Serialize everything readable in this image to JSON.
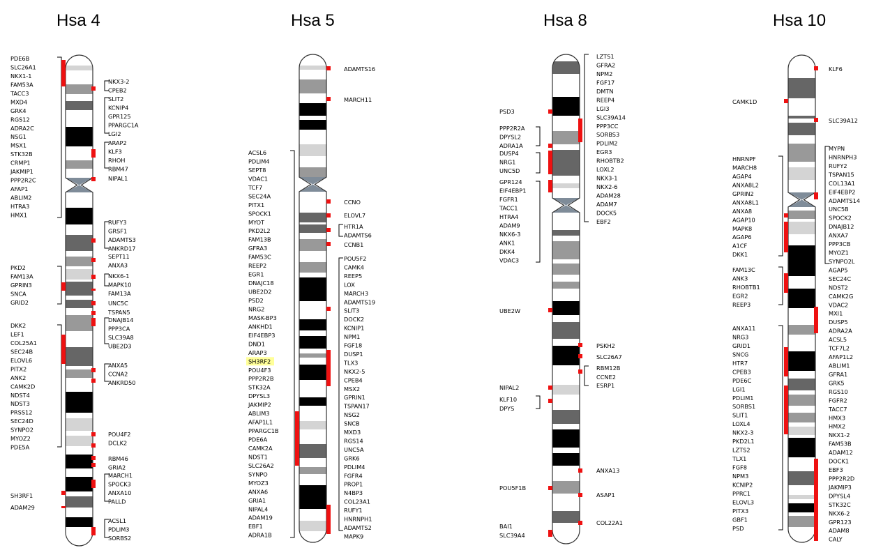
{
  "chromosomes": [
    {
      "id": "hsa4",
      "title": "Hsa 4",
      "left_genes": [
        "PDE6B",
        "SLC26A1",
        "NKX1-1",
        "FAM53A",
        "TACC3",
        "MXD4",
        "GRK4",
        "RGS12",
        "ADRA2C",
        "NSG1",
        "MSX1",
        "STK32B",
        "CRMP1",
        "JAKMIP1",
        "PPP2R2C",
        "AFAP1",
        "ABLIM2",
        "HTRA3",
        "HMX1",
        "PKD2",
        "FAM13A",
        "GPRIN3",
        "SNCA",
        "GRID2",
        "DKK2",
        "LEF1",
        "COL25A1",
        "SEC24B",
        "ELOVL6",
        "PITX2",
        "ANK2",
        "CAMK2D",
        "NDST4",
        "NDST3",
        "PRSS12",
        "SEC24D",
        "SYNPO2",
        "MYOZ2",
        "PDE5A",
        "SH3RF1",
        "ADAM29"
      ],
      "right_genes": [
        "NKX3-2",
        "CPEB2",
        "SLIT2",
        "KCNIP4",
        "GPR125",
        "PPARGC1A",
        "LGI2",
        "ARAP2",
        "KLF3",
        "RHOH",
        "RBM47",
        "NIPAL1",
        "RUFY3",
        "GRSF1",
        "ADAMTS3",
        "ANKRD17",
        "SEPT11",
        "ANXA3",
        "NKX6-1",
        "MAPK10",
        "FAM13A",
        "UNC5C",
        "TSPAN5",
        "DNAJB14",
        "PPP3CA",
        "SLC39A8",
        "UBE2D3",
        "ANXA5",
        "CCNA2",
        "ANKRD50",
        "POU4F2",
        "DCLK2",
        "RBM46",
        "GRIA2",
        "MARCH1",
        "SPOCK3",
        "ANXA10",
        "PALLD",
        "ACSL1",
        "PDLIM3",
        "SORBS2"
      ]
    },
    {
      "id": "hsa5",
      "title": "Hsa 5",
      "left_genes": [
        "ACSL6",
        "PDLIM4",
        "SEPT8",
        "VDAC1",
        "TCF7",
        "SEC24A",
        "PITX1",
        "SPOCK1",
        "MYOT",
        "PKD2L2",
        "FAM13B",
        "GFRA3",
        "FAM53C",
        "REEP2",
        "EGR1",
        "DNAJC18",
        "UBE2D2",
        "PSD2",
        "NRG2",
        "MASK-BP3",
        "ANKHD1",
        "EIF4EBP3",
        "DND1",
        "ARAP3",
        "SH3RF2",
        "POU4F3",
        "PPP2R2B",
        "STK32A",
        "DPYSL3",
        "JAKMIP2",
        "ABLIM3",
        "AFAP1L1",
        "PPARGC1B",
        "PDE6A",
        "CAMK2A",
        "NDST1",
        "SLC26A2",
        "SYNPO",
        "MYOZ3",
        "ANXA6",
        "GRIA1",
        "NIPAL4",
        "ADAM19",
        "EBF1",
        "ADRA1B"
      ],
      "right_genes": [
        "ADAMTS16",
        "MARCH11",
        "CCNO",
        "ELOVL7",
        "HTR1A",
        "ADAMTS6",
        "CCNB1",
        "POU5F2",
        "CAMK4",
        "REEP5",
        "LOX",
        "MARCH3",
        "ADAMTS19",
        "SLIT3",
        "DOCK2",
        "KCNIP1",
        "NPM1",
        "FGF18",
        "DUSP1",
        "TLX3",
        "NKX2-5",
        "CPEB4",
        "MSX2",
        "GPRIN1",
        "TSPAN17",
        "NSG2",
        "SNCB",
        "MXD3",
        "RGS14",
        "UNC5A",
        "GRK6",
        "PDLIM4",
        "FGFR4",
        "PROP1",
        "N4BP3",
        "COL23A1",
        "RUFY1",
        "HNRNPH1",
        "ADAMTS2",
        "MAPK9"
      ],
      "highlighted_gene": "SH3RF2"
    },
    {
      "id": "hsa8",
      "title": "Hsa 8",
      "left_genes": [
        "PSD3",
        "PPP2R2A",
        "DPYSL2",
        "ADRA1A",
        "DUSP4",
        "NRG1",
        "UNC5D",
        "GPR124",
        "EIF4EBP1",
        "FGFR1",
        "TACC1",
        "HTRA4",
        "ADAM9",
        "NKX6-3",
        "ANK1",
        "DKK4",
        "VDAC3",
        "UBE2W",
        "NIPAL2",
        "KLF10",
        "DPYS",
        "POU5F1B",
        "BAI1",
        "SLC39A4"
      ],
      "right_genes": [
        "LZTS1",
        "GFRA2",
        "NPM2",
        "FGF17",
        "DMTN",
        "REEP4",
        "LGI3",
        "SLC39A14",
        "PPP3CC",
        "SORBS3",
        "PDLIM2",
        "EGR3",
        "RHOBTB2",
        "LOXL2",
        "NKX3-1",
        "NKX2-6",
        "ADAM28",
        "ADAM7",
        "DOCK5",
        "EBF2",
        "PSKH2",
        "SLC26A7",
        "RBM12B",
        "CCNE2",
        "ESRP1",
        "ANXA13",
        "ASAP1",
        "COL22A1"
      ]
    },
    {
      "id": "hsa10",
      "title": "Hsa 10",
      "left_genes": [
        "CAMK1D",
        "HNRNPF",
        "MARCH8",
        "AGAP4",
        "ANXA8L2",
        "GPRIN2",
        "ANXA8L1",
        "ANXA8",
        "AGAP10",
        "MAPK8",
        "AGAP6",
        "A1CF",
        "DKK1",
        "FAM13C",
        "ANK3",
        "RHOBTB1",
        "EGR2",
        "REEP3",
        "ANXA11",
        "NRG3",
        "GRID1",
        "SNCG",
        "HTR7",
        "CPEB3",
        "PDE6C",
        "LGI1",
        "PDLIM1",
        "SORBS1",
        "SLIT1",
        "LOXL4",
        "NKX2-3",
        "PKD2L1",
        "LZTS2",
        "TLX1",
        "FGF8",
        "NPM3",
        "KCNIP2",
        "PPRC1",
        "ELOVL3",
        "PITX3",
        "GBF1",
        "PSD"
      ],
      "right_genes": [
        "KLF6",
        "SLC39A12",
        "MYPN",
        "HNRNPH3",
        "RUFY2",
        "TSPAN15",
        "COL13A1",
        "EIF4EBP2",
        "ADAMTS14",
        "UNC5B",
        "SPOCK2",
        "DNAJB12",
        "ANXA7",
        "PPP3CB",
        "MYOZ1",
        "SYNPO2L",
        "AGAP5",
        "SEC24C",
        "NDST2",
        "CAMK2G",
        "VDAC2",
        "MXI1",
        "DUSP5",
        "ADRA2A",
        "ACSL5",
        "TCF7L2",
        "AFAP1L2",
        "ABLIM1",
        "GFRA1",
        "GRK5",
        "RGS10",
        "FGFR2",
        "TACC7",
        "HMX3",
        "HMX2",
        "NKX1-2",
        "FAM53B",
        "ADAM12",
        "DOCK1",
        "EBF3",
        "PPP2R2D",
        "JAKMIP3",
        "DPYSL4",
        "STK32C",
        "NKX6-2",
        "GPR123",
        "ADAM8",
        "CALY"
      ]
    }
  ],
  "colors": {
    "marker": "#ee1111",
    "band_black": "#000000",
    "band_dark": "#666666",
    "band_mid": "#999999",
    "band_light": "#d4d4d4",
    "centromere": "#7f8c99",
    "highlight": "#ffff99"
  }
}
